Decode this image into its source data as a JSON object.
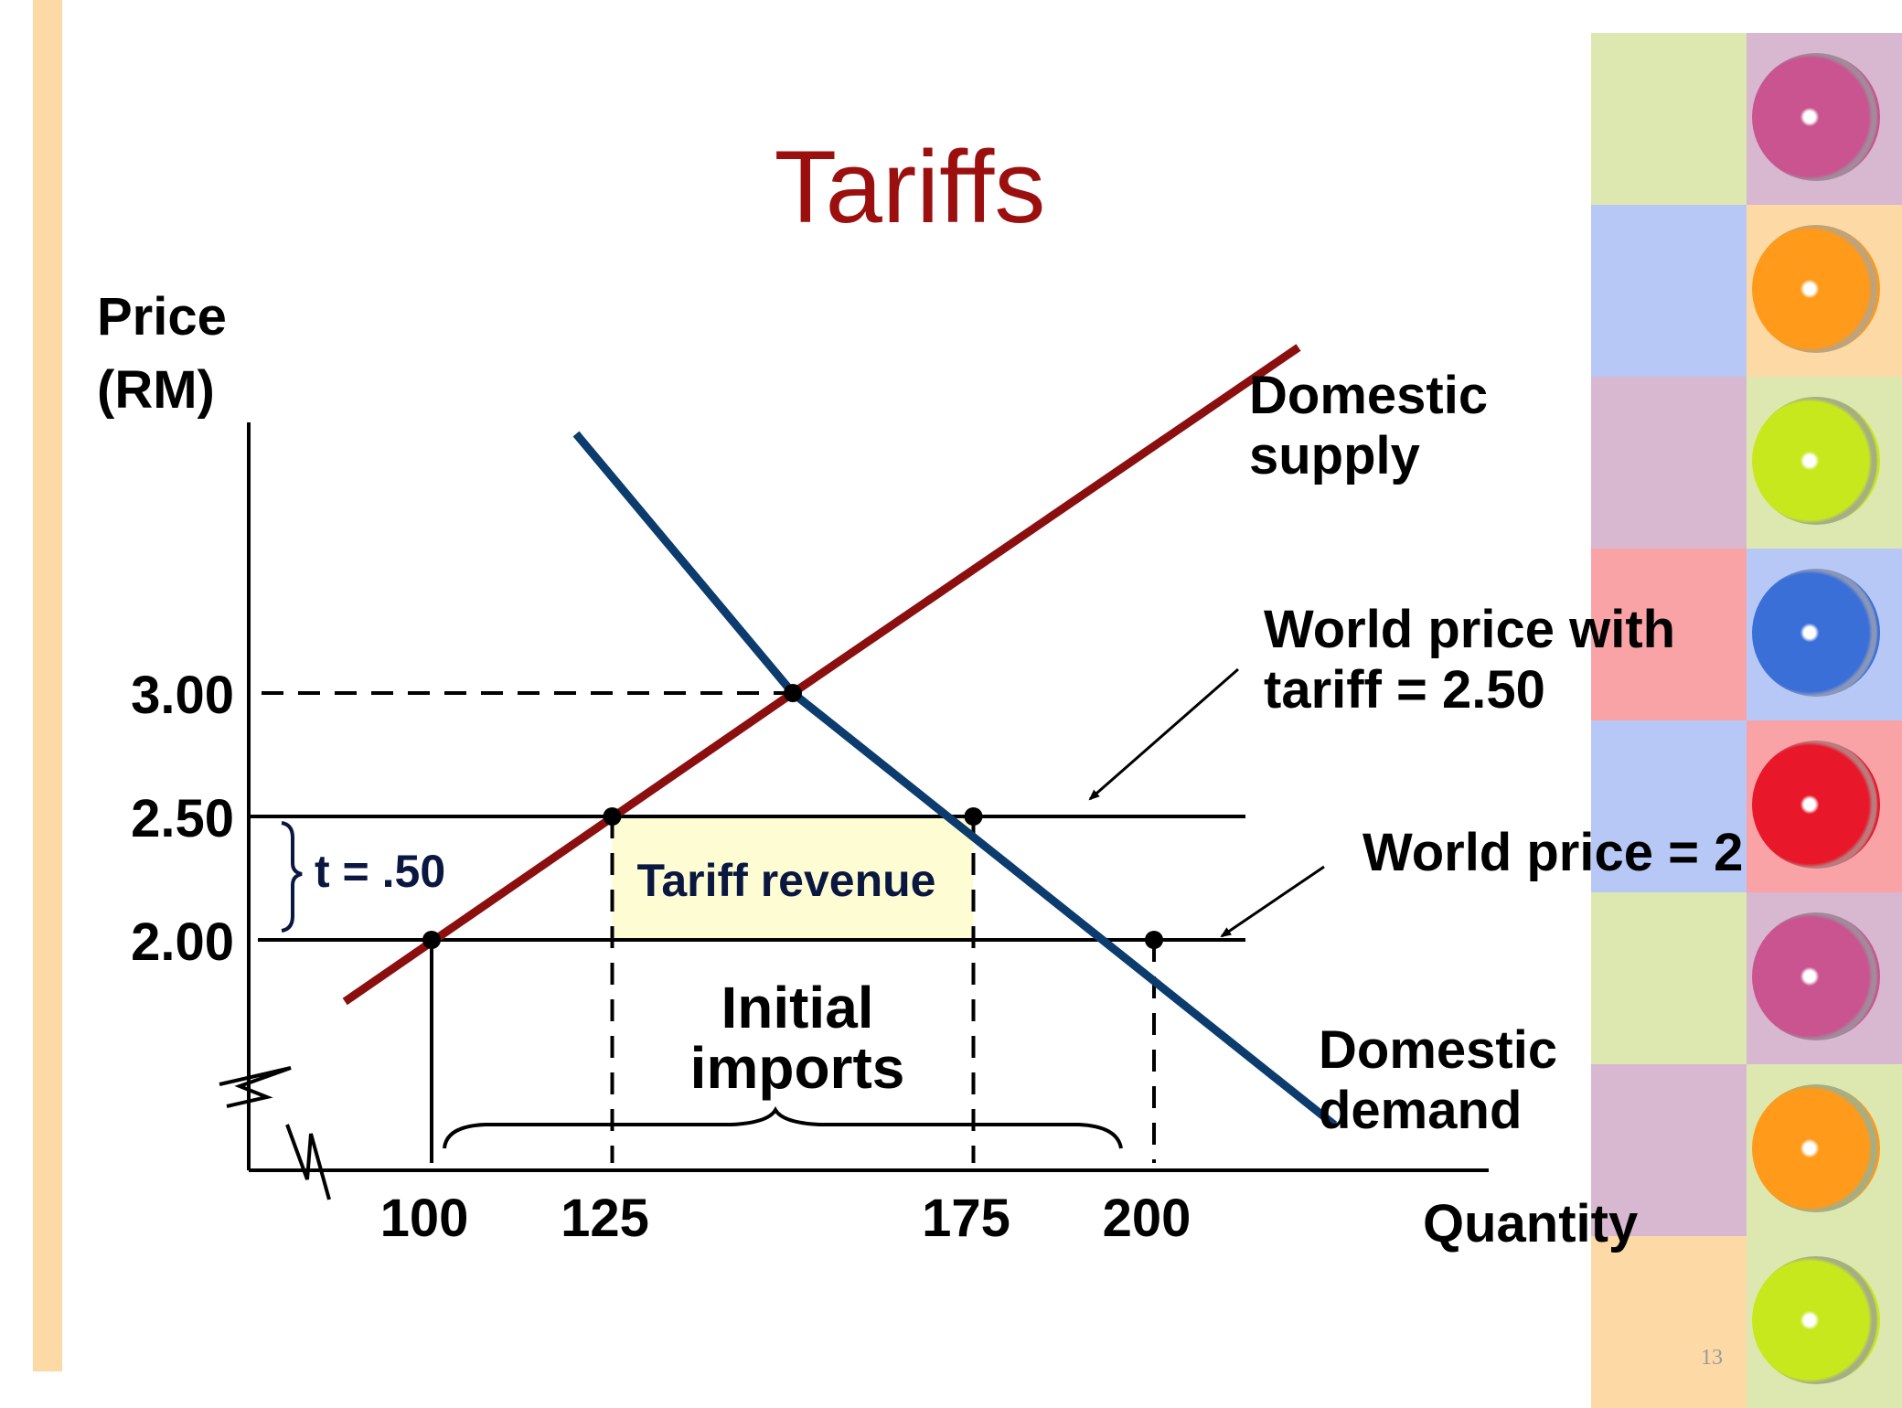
{
  "title": "Tariffs",
  "page_number": "13",
  "colors": {
    "supply": "#8b0f0f",
    "demand": "#0c3b6e",
    "title": "#9b0f0f",
    "revenue_fill": "#fdfcd3",
    "left_bar": "#fdd9a5"
  },
  "decor": {
    "tiles_left": [
      "#dde8b0",
      "#b7c8f7",
      "#d8b7d0",
      "#f9a3a6",
      "#b7c8f7",
      "#dde8b0",
      "#d8b7d0",
      "#fdd9a5"
    ],
    "tiles_right": [
      "#d8b7d0",
      "#fdd9a5",
      "#dde8b0",
      "#b7c8f7",
      "#f9a3a6",
      "#d8b7d0",
      "#dde8b0",
      "#dde8b0"
    ],
    "fruits": [
      "apple-slice-icon",
      "orange-slice-icon",
      "apple-slice-icon",
      "apple-slice-icon",
      "orange-slice-icon",
      "apple-slice-icon",
      "orange-slice-icon",
      "apple-slice-icon"
    ],
    "fruit_colors": [
      "#c9548f",
      "#ff9a1a",
      "#c8e81e",
      "#3a6fd8",
      "#e8182a",
      "#c9548f",
      "#ff9a1a",
      "#c8e81e"
    ]
  },
  "chart_data": {
    "type": "line",
    "ylabel": [
      "Price",
      "(RM)"
    ],
    "xlabel": "Quantity",
    "y_ticks": [
      {
        "value": 3.0,
        "label": "3.00"
      },
      {
        "value": 2.5,
        "label": "2.50"
      },
      {
        "value": 2.0,
        "label": "2.00"
      }
    ],
    "x_ticks": [
      {
        "value": 100,
        "label": "100"
      },
      {
        "value": 125,
        "label": "125"
      },
      {
        "value": 175,
        "label": "175"
      },
      {
        "value": 200,
        "label": "200"
      }
    ],
    "series": [
      {
        "name": "supply",
        "label": [
          "Domestic",
          "supply"
        ],
        "points": [
          [
            88,
            1.75
          ],
          [
            150,
            3.0
          ],
          [
            220,
            4.4
          ]
        ]
      },
      {
        "name": "demand",
        "label": [
          "Domestic",
          "demand"
        ],
        "points": [
          [
            120,
            4.05
          ],
          [
            150,
            3.0
          ],
          [
            225,
            1.25
          ]
        ]
      }
    ],
    "horizontal_lines": [
      {
        "y": 2.5,
        "label": [
          "World price with",
          "tariff = 2.50"
        ]
      },
      {
        "y": 2.0,
        "label": [
          "World price = 2"
        ]
      }
    ],
    "points": [
      {
        "x": 150,
        "y": 3.0
      },
      {
        "x": 125,
        "y": 2.5
      },
      {
        "x": 175,
        "y": 2.5
      },
      {
        "x": 100,
        "y": 2.0
      },
      {
        "x": 200,
        "y": 2.0
      }
    ],
    "annotations": {
      "tariff": "t = .50",
      "tariff_revenue": "Tariff revenue",
      "initial_imports": [
        "Initial",
        "imports"
      ]
    },
    "axis_break": true
  }
}
